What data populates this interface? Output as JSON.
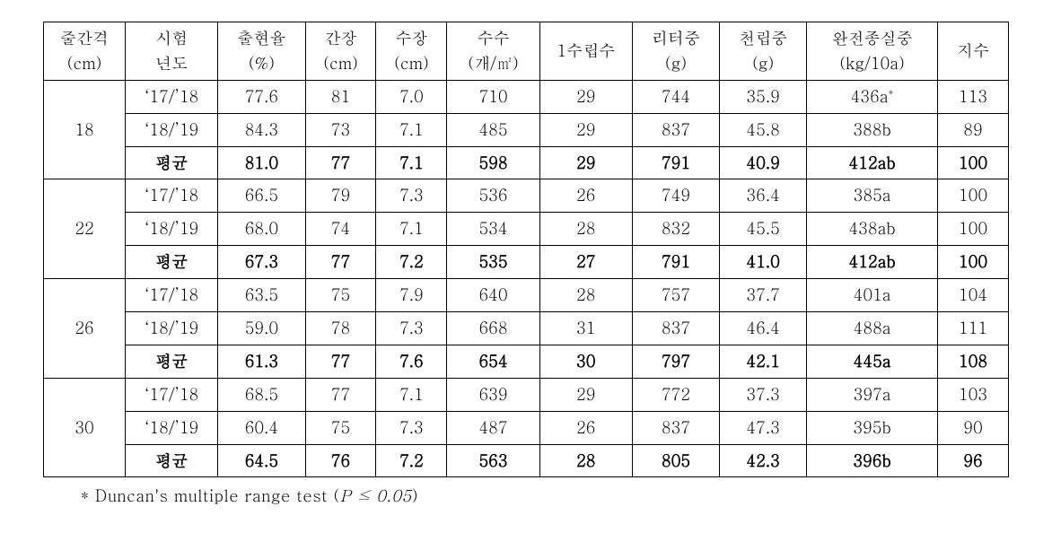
{
  "table": {
    "headers": [
      {
        "line1": "줄간격",
        "line2": "(cm)"
      },
      {
        "line1": "시험",
        "line2": "년도"
      },
      {
        "line1": "출현율",
        "line2": "(%)"
      },
      {
        "line1": "간장",
        "line2": "(cm)"
      },
      {
        "line1": "수장",
        "line2": "(cm)"
      },
      {
        "line1": "수수",
        "line2": "(개/㎡)"
      },
      {
        "line1": "1수립수",
        "line2": ""
      },
      {
        "line1": "리터중",
        "line2": "(g)"
      },
      {
        "line1": "천립중",
        "line2": "(g)"
      },
      {
        "line1": "완전종실중",
        "line2": "(kg/10a)"
      },
      {
        "line1": "지수",
        "line2": ""
      }
    ],
    "groups": [
      {
        "spacing": "18",
        "rows": [
          {
            "year": "‘17/’18",
            "emerg": "77.6",
            "culm": "81",
            "spike": "7.0",
            "panicle": "710",
            "grains": "29",
            "liter": "744",
            "tgw": "35.9",
            "yield": "436a",
            "yield_suffix": "*",
            "idx": "113",
            "bold": false
          },
          {
            "year": "‘18/’19",
            "emerg": "84.3",
            "culm": "73",
            "spike": "7.1",
            "panicle": "485",
            "grains": "29",
            "liter": "837",
            "tgw": "45.8",
            "yield": "388b",
            "yield_suffix": "",
            "idx": "89",
            "bold": false
          },
          {
            "year": "평균",
            "emerg": "81.0",
            "culm": "77",
            "spike": "7.1",
            "panicle": "598",
            "grains": "29",
            "liter": "791",
            "tgw": "40.9",
            "yield": "412ab",
            "yield_suffix": "",
            "idx": "100",
            "bold": true
          }
        ]
      },
      {
        "spacing": "22",
        "rows": [
          {
            "year": "‘17/’18",
            "emerg": "66.5",
            "culm": "79",
            "spike": "7.3",
            "panicle": "536",
            "grains": "26",
            "liter": "749",
            "tgw": "36.4",
            "yield": "385a",
            "yield_suffix": "",
            "idx": "100",
            "bold": false
          },
          {
            "year": "‘18/’19",
            "emerg": "68.0",
            "culm": "74",
            "spike": "7.1",
            "panicle": "534",
            "grains": "28",
            "liter": "832",
            "tgw": "45.5",
            "yield": "438ab",
            "yield_suffix": "",
            "idx": "100",
            "bold": false
          },
          {
            "year": "평균",
            "emerg": "67.3",
            "culm": "77",
            "spike": "7.2",
            "panicle": "535",
            "grains": "27",
            "liter": "791",
            "tgw": "41.0",
            "yield": "412ab",
            "yield_suffix": "",
            "idx": "100",
            "bold": true
          }
        ]
      },
      {
        "spacing": "26",
        "rows": [
          {
            "year": "‘17/’18",
            "emerg": "63.5",
            "culm": "75",
            "spike": "7.9",
            "panicle": "640",
            "grains": "28",
            "liter": "757",
            "tgw": "37.7",
            "yield": "401a",
            "yield_suffix": "",
            "idx": "104",
            "bold": false
          },
          {
            "year": "‘18/’19",
            "emerg": "59.0",
            "culm": "78",
            "spike": "7.3",
            "panicle": "668",
            "grains": "31",
            "liter": "837",
            "tgw": "46.4",
            "yield": "488a",
            "yield_suffix": "",
            "idx": "111",
            "bold": false
          },
          {
            "year": "평균",
            "emerg": "61.3",
            "culm": "77",
            "spike": "7.6",
            "panicle": "654",
            "grains": "30",
            "liter": "797",
            "tgw": "42.1",
            "yield": "445a",
            "yield_suffix": "",
            "idx": "108",
            "bold": true
          }
        ]
      },
      {
        "spacing": "30",
        "rows": [
          {
            "year": "‘17/’18",
            "emerg": "68.5",
            "culm": "77",
            "spike": "7.1",
            "panicle": "639",
            "grains": "29",
            "liter": "772",
            "tgw": "37.3",
            "yield": "397a",
            "yield_suffix": "",
            "idx": "103",
            "bold": false
          },
          {
            "year": "‘18/’19",
            "emerg": "60.4",
            "culm": "75",
            "spike": "7.3",
            "panicle": "487",
            "grains": "26",
            "liter": "837",
            "tgw": "47.3",
            "yield": "395b",
            "yield_suffix": "",
            "idx": "90",
            "bold": false
          },
          {
            "year": "평균",
            "emerg": "64.5",
            "culm": "76",
            "spike": "7.2",
            "panicle": "563",
            "grains": "28",
            "liter": "805",
            "tgw": "42.3",
            "yield": "396b",
            "yield_suffix": "",
            "idx": "96",
            "bold": true
          }
        ]
      }
    ],
    "footnote": {
      "prefix": "* Duncan's multiple range test (",
      "stat": "P  ≤ 0.05",
      "suffix": ")"
    },
    "styling": {
      "border_color": "#000000",
      "text_color": "#000000",
      "background_color": "#ffffff",
      "font_size_pt": 13,
      "footnote_font_size_pt": 13
    }
  }
}
